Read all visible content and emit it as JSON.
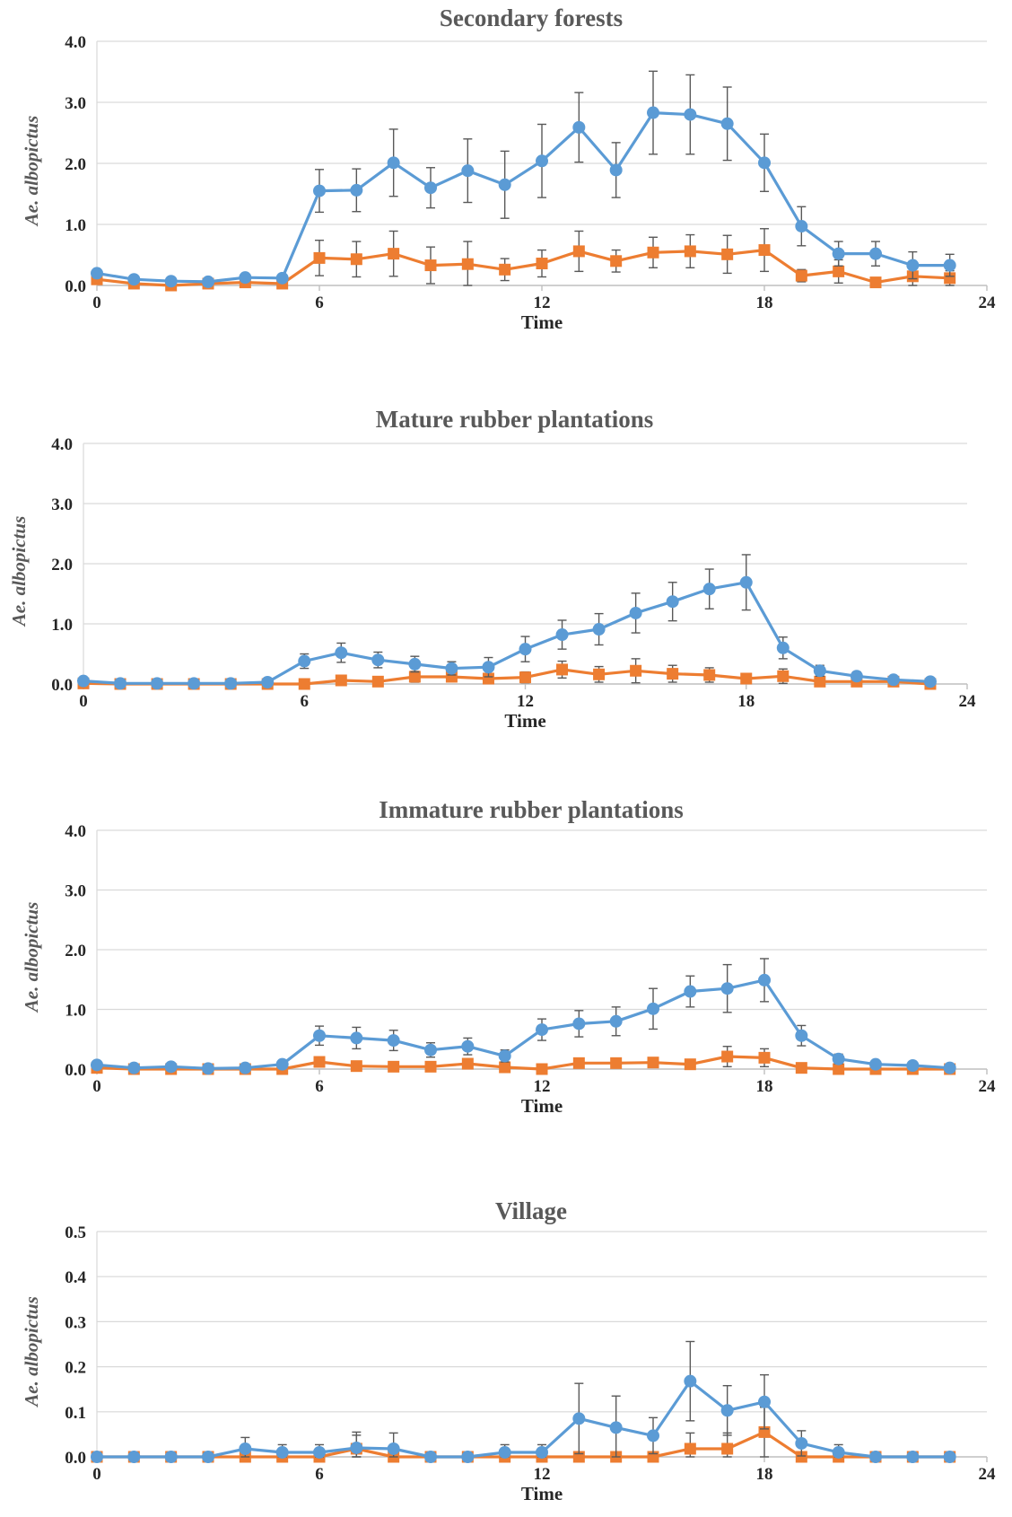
{
  "chart_data": [
    {
      "type": "line",
      "title": "Secondary forests",
      "xlabel": "Time",
      "ylabel": "Ae. albopictus",
      "xlim": [
        0,
        24
      ],
      "ylim": [
        0,
        4.0
      ],
      "xticks": [
        0,
        6,
        12,
        18,
        24
      ],
      "yticks": [
        "0.0",
        "1.0",
        "2.0",
        "3.0",
        "4.0"
      ],
      "grid": true,
      "x": [
        0,
        1,
        2,
        3,
        4,
        5,
        6,
        7,
        8,
        9,
        10,
        11,
        12,
        13,
        14,
        15,
        16,
        17,
        18,
        19,
        20,
        21,
        22,
        23
      ],
      "series": [
        {
          "color": "#5b9bd5",
          "marker": "circle",
          "values": [
            0.2,
            0.1,
            0.07,
            0.06,
            0.13,
            0.12,
            1.55,
            1.56,
            2.01,
            1.6,
            1.88,
            1.65,
            2.04,
            2.59,
            1.89,
            2.83,
            2.8,
            2.65,
            2.01,
            0.97,
            0.52,
            0.52,
            0.33,
            0.33
          ],
          "errors": [
            0.05,
            0.04,
            0.03,
            0.03,
            0.05,
            0.05,
            0.35,
            0.35,
            0.55,
            0.33,
            0.52,
            0.55,
            0.6,
            0.57,
            0.45,
            0.68,
            0.65,
            0.6,
            0.47,
            0.32,
            0.2,
            0.2,
            0.22,
            0.18
          ]
        },
        {
          "color": "#ed7d31",
          "marker": "square",
          "values": [
            0.1,
            0.03,
            0.0,
            0.03,
            0.05,
            0.03,
            0.45,
            0.43,
            0.52,
            0.33,
            0.35,
            0.26,
            0.36,
            0.56,
            0.4,
            0.54,
            0.56,
            0.51,
            0.58,
            0.16,
            0.23,
            0.05,
            0.15,
            0.12
          ],
          "errors": [
            0.03,
            0.02,
            0.0,
            0.02,
            0.03,
            0.02,
            0.29,
            0.29,
            0.37,
            0.3,
            0.37,
            0.18,
            0.22,
            0.33,
            0.18,
            0.25,
            0.27,
            0.31,
            0.35,
            0.1,
            0.19,
            0.05,
            0.15,
            0.12
          ]
        }
      ]
    },
    {
      "type": "line",
      "title": "Mature rubber plantations",
      "xlabel": "Time",
      "ylabel": "Ae. albopictus",
      "xlim": [
        0,
        24
      ],
      "ylim": [
        0,
        4.0
      ],
      "xticks": [
        0,
        6,
        12,
        18,
        24
      ],
      "yticks": [
        "0.0",
        "1.0",
        "2.0",
        "3.0",
        "4.0"
      ],
      "grid": true,
      "x": [
        0,
        1,
        2,
        3,
        4,
        5,
        6,
        7,
        8,
        9,
        10,
        11,
        12,
        13,
        14,
        15,
        16,
        17,
        18,
        19,
        20,
        21,
        22,
        23
      ],
      "series": [
        {
          "color": "#5b9bd5",
          "marker": "circle",
          "values": [
            0.05,
            0.01,
            0.01,
            0.01,
            0.01,
            0.03,
            0.38,
            0.52,
            0.4,
            0.33,
            0.26,
            0.28,
            0.58,
            0.82,
            0.91,
            1.18,
            1.37,
            1.58,
            1.69,
            0.6,
            0.22,
            0.13,
            0.07,
            0.04
          ],
          "errors": [
            0.02,
            0.01,
            0.01,
            0.01,
            0.01,
            0.02,
            0.12,
            0.16,
            0.13,
            0.13,
            0.11,
            0.16,
            0.21,
            0.24,
            0.26,
            0.33,
            0.32,
            0.33,
            0.46,
            0.18,
            0.09,
            0.07,
            0.04,
            0.03
          ]
        },
        {
          "color": "#ed7d31",
          "marker": "square",
          "values": [
            0.01,
            0.0,
            0.0,
            0.0,
            0.0,
            0.0,
            0.0,
            0.06,
            0.04,
            0.12,
            0.12,
            0.09,
            0.11,
            0.24,
            0.16,
            0.22,
            0.17,
            0.15,
            0.09,
            0.13,
            0.04,
            0.04,
            0.04,
            0.0
          ],
          "errors": [
            0.01,
            0.0,
            0.0,
            0.0,
            0.0,
            0.0,
            0.0,
            0.04,
            0.03,
            0.09,
            0.08,
            0.08,
            0.09,
            0.14,
            0.13,
            0.2,
            0.14,
            0.12,
            0.07,
            0.12,
            0.03,
            0.03,
            0.03,
            0.0
          ]
        }
      ]
    },
    {
      "type": "line",
      "title": "Immature rubber plantations",
      "xlabel": "Time",
      "ylabel": "Ae. albopictus",
      "xlim": [
        0,
        24
      ],
      "ylim": [
        0,
        4.0
      ],
      "xticks": [
        0,
        6,
        12,
        18,
        24
      ],
      "yticks": [
        "0.0",
        "1.0",
        "2.0",
        "3.0",
        "4.0"
      ],
      "grid": true,
      "x": [
        0,
        1,
        2,
        3,
        4,
        5,
        6,
        7,
        8,
        9,
        10,
        11,
        12,
        13,
        14,
        15,
        16,
        17,
        18,
        19,
        20,
        21,
        22,
        23
      ],
      "series": [
        {
          "color": "#5b9bd5",
          "marker": "circle",
          "values": [
            0.07,
            0.02,
            0.04,
            0.01,
            0.02,
            0.08,
            0.56,
            0.52,
            0.48,
            0.32,
            0.38,
            0.22,
            0.66,
            0.76,
            0.8,
            1.01,
            1.3,
            1.35,
            1.49,
            0.56,
            0.17,
            0.08,
            0.06,
            0.02
          ],
          "errors": [
            0.03,
            0.02,
            0.02,
            0.01,
            0.02,
            0.04,
            0.16,
            0.18,
            0.17,
            0.12,
            0.14,
            0.1,
            0.18,
            0.22,
            0.24,
            0.34,
            0.26,
            0.4,
            0.36,
            0.17,
            0.08,
            0.05,
            0.04,
            0.02
          ]
        },
        {
          "color": "#ed7d31",
          "marker": "square",
          "values": [
            0.02,
            0.0,
            0.0,
            0.0,
            0.0,
            0.0,
            0.12,
            0.05,
            0.04,
            0.04,
            0.09,
            0.03,
            0.0,
            0.1,
            0.1,
            0.11,
            0.08,
            0.21,
            0.19,
            0.02,
            0.0,
            0.0,
            0.0,
            0.0
          ],
          "errors": [
            0.01,
            0.0,
            0.0,
            0.0,
            0.0,
            0.0,
            0.08,
            0.04,
            0.03,
            0.03,
            0.07,
            0.03,
            0.0,
            0.07,
            0.07,
            0.08,
            0.06,
            0.17,
            0.15,
            0.02,
            0.0,
            0.0,
            0.0,
            0.0
          ]
        }
      ]
    },
    {
      "type": "line",
      "title": "Village",
      "xlabel": "Time",
      "ylabel": "Ae. albopictus",
      "xlim": [
        0,
        24
      ],
      "ylim": [
        0,
        0.5
      ],
      "xticks": [
        0,
        6,
        12,
        18,
        24
      ],
      "yticks": [
        "0.0",
        "0.1",
        "0.2",
        "0.3",
        "0.4",
        "0.5"
      ],
      "grid": true,
      "x": [
        0,
        1,
        2,
        3,
        4,
        5,
        6,
        7,
        8,
        9,
        10,
        11,
        12,
        13,
        14,
        15,
        16,
        17,
        18,
        19,
        20,
        21,
        22,
        23
      ],
      "series": [
        {
          "color": "#5b9bd5",
          "marker": "circle",
          "values": [
            0.0,
            0.0,
            0.0,
            0.0,
            0.018,
            0.01,
            0.01,
            0.02,
            0.018,
            0.0,
            0.0,
            0.01,
            0.01,
            0.085,
            0.065,
            0.047,
            0.168,
            0.103,
            0.122,
            0.03,
            0.01,
            0.0,
            0.0,
            0.0
          ],
          "errors": [
            0.0,
            0.0,
            0.0,
            0.0,
            0.025,
            0.017,
            0.017,
            0.035,
            0.035,
            0.0,
            0.0,
            0.017,
            0.017,
            0.078,
            0.07,
            0.04,
            0.088,
            0.055,
            0.06,
            0.028,
            0.017,
            0.0,
            0.0,
            0.0
          ]
        },
        {
          "color": "#ed7d31",
          "marker": "square",
          "values": [
            0.0,
            0.0,
            0.0,
            0.0,
            0.0,
            0.0,
            0.0,
            0.018,
            0.0,
            0.0,
            0.0,
            0.0,
            0.0,
            0.0,
            0.0,
            0.0,
            0.018,
            0.018,
            0.055,
            0.0,
            0.0,
            0.0,
            0.0,
            0.0
          ],
          "errors": [
            0.0,
            0.0,
            0.0,
            0.0,
            0.0,
            0.0,
            0.0,
            0.03,
            0.0,
            0.0,
            0.0,
            0.0,
            0.0,
            0.0,
            0.0,
            0.0,
            0.035,
            0.035,
            0.055,
            0.0,
            0.0,
            0.0,
            0.0,
            0.0
          ]
        }
      ]
    }
  ]
}
